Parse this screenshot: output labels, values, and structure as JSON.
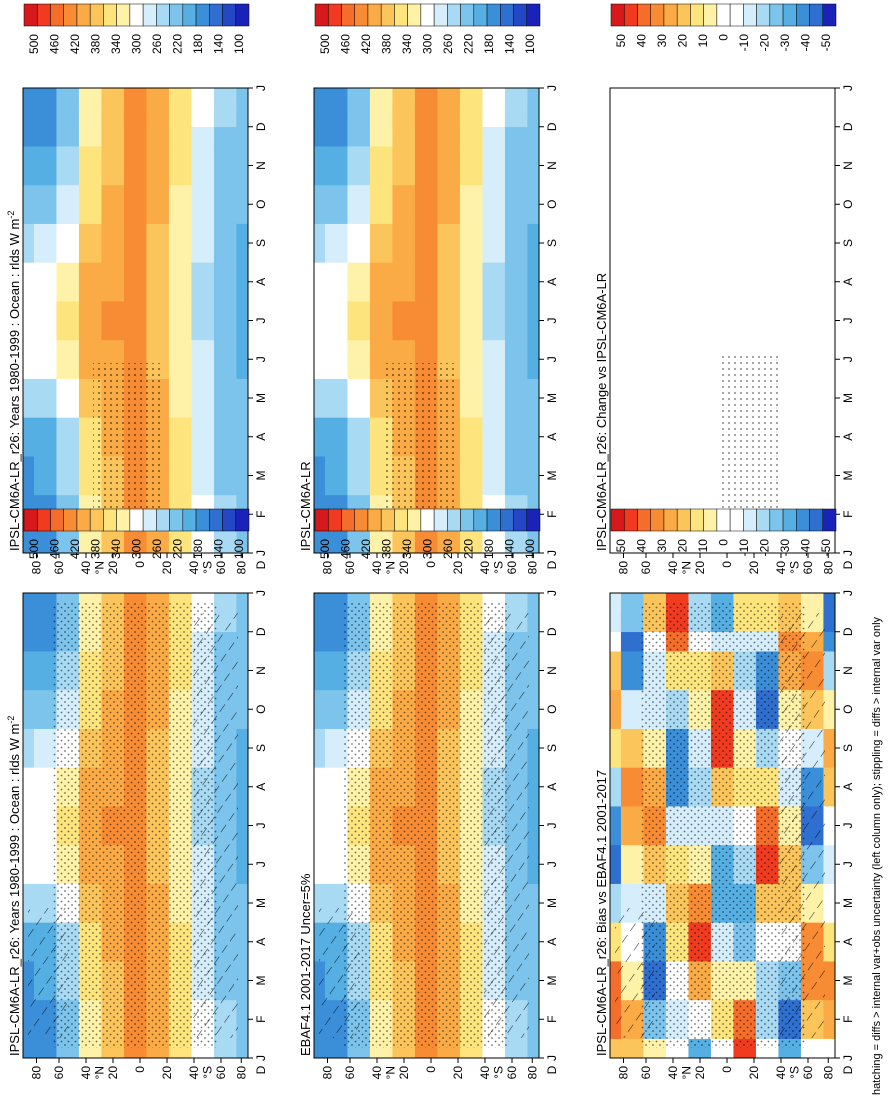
{
  "footnote": "hatching = diffs > internal var+obs uncertainty (left column only); stippling = diffs > internal var only",
  "month_ticks": [
    "J",
    "F",
    "M",
    "A",
    "M",
    "J",
    "J",
    "A",
    "S",
    "O",
    "N",
    "D",
    "J"
  ],
  "lat_ticks": [
    "80",
    "60",
    "40",
    "20",
    "0",
    "20",
    "40",
    "60",
    "80"
  ],
  "lat_hemi_marks": [
    "N",
    "S"
  ],
  "lat_left_end_label": "D",
  "abs_colorbar": {
    "labels": [
      "500",
      "460",
      "420",
      "380",
      "340",
      "300",
      "260",
      "220",
      "180",
      "140",
      "100"
    ],
    "colors": [
      "#d7191c",
      "#f03b20",
      "#f46d2a",
      "#f88c35",
      "#fbab45",
      "#fcc55c",
      "#fde47d",
      "#fef1a8",
      "#ffffff",
      "#d6eefb",
      "#a9daf4",
      "#7cc4ec",
      "#55afe3",
      "#3b8fd9",
      "#2f6fd0",
      "#2447c6",
      "#1a22b8"
    ]
  },
  "diff_colorbar": {
    "labels": [
      "50",
      "40",
      "30",
      "20",
      "10",
      "0",
      "-10",
      "-20",
      "-30",
      "-40",
      "-50"
    ],
    "colors": [
      "#d7191c",
      "#f03b20",
      "#f46d2a",
      "#f88c35",
      "#fbab45",
      "#fcc55c",
      "#fde47d",
      "#fef1a8",
      "#ffffff",
      "#ffffff",
      "#d6eefb",
      "#a9daf4",
      "#7cc4ec",
      "#55afe3",
      "#3b8fd9",
      "#2f6fd0",
      "#1a22b8"
    ]
  },
  "panels": [
    {
      "id": "model-left",
      "title": "IPSL-CM6A-LR_r26: Years 1980-1999 : Ocean : rlds W m",
      "title_sup": "-2",
      "kind": "abs",
      "stipple": "dense",
      "hatch": true
    },
    {
      "id": "model-right",
      "title": "IPSL-CM6A-LR_r26: Years 1980-1999 : Ocean : rlds W m",
      "title_sup": "-2",
      "kind": "abs",
      "stipple": "sparse",
      "hatch": false
    },
    {
      "id": "obs-left",
      "title": "EBAF4.1 2001-2017 Uncer=5%",
      "title_sup": "",
      "kind": "abs",
      "stipple": "dense",
      "hatch": true
    },
    {
      "id": "ref-right",
      "title": "IPSL-CM6A-LR",
      "title_sup": "",
      "kind": "abs",
      "stipple": "sparse",
      "hatch": false
    },
    {
      "id": "bias-left",
      "title": "IPSL-CM6A-LR_r26: Bias vs EBAF4.1 2001-2017",
      "title_sup": "",
      "kind": "diff",
      "stipple": "dense",
      "hatch": true
    },
    {
      "id": "change-right",
      "title": "IPSL-CM6A-LR_r26: Change vs IPSL-CM6A-LR",
      "title_sup": "",
      "kind": "diffblank",
      "stipple": "sparse",
      "hatch": false
    }
  ],
  "chart_data": {
    "type": "heatmap",
    "description_axes": {
      "x": "month (Jan–Jan)",
      "y": "latitude (90S–90N)"
    },
    "months": [
      "J",
      "F",
      "M",
      "A",
      "M",
      "J",
      "J",
      "A",
      "S",
      "O",
      "N",
      "D",
      "J"
    ],
    "latitudes": [
      90,
      80,
      60,
      40,
      20,
      0,
      -20,
      -40,
      -60,
      -80,
      -90
    ],
    "rlds_climatology": [
      [
        170,
        170,
        180,
        200,
        240,
        290,
        300,
        300,
        260,
        220,
        190,
        175,
        170
      ],
      [
        180,
        180,
        190,
        210,
        250,
        300,
        310,
        305,
        270,
        230,
        200,
        185,
        180
      ],
      [
        230,
        230,
        240,
        260,
        300,
        330,
        340,
        335,
        310,
        280,
        250,
        235,
        230
      ],
      [
        330,
        330,
        340,
        350,
        370,
        390,
        395,
        390,
        375,
        355,
        340,
        335,
        330
      ],
      [
        380,
        380,
        385,
        395,
        405,
        410,
        415,
        410,
        405,
        395,
        385,
        380,
        380
      ],
      [
        420,
        425,
        430,
        430,
        425,
        420,
        415,
        415,
        420,
        425,
        425,
        420,
        420
      ],
      [
        400,
        405,
        405,
        400,
        395,
        385,
        380,
        380,
        385,
        390,
        395,
        400,
        400
      ],
      [
        350,
        355,
        350,
        340,
        330,
        320,
        315,
        315,
        320,
        330,
        340,
        345,
        350
      ],
      [
        290,
        290,
        285,
        280,
        270,
        265,
        260,
        260,
        265,
        270,
        280,
        285,
        290
      ],
      [
        240,
        240,
        235,
        230,
        225,
        220,
        215,
        215,
        220,
        225,
        230,
        235,
        240
      ],
      [
        230,
        230,
        225,
        220,
        215,
        210,
        205,
        205,
        210,
        215,
        220,
        225,
        230
      ]
    ],
    "colorbar_abs": {
      "ticks": [
        500,
        460,
        420,
        380,
        340,
        300,
        260,
        220,
        180,
        140,
        100
      ],
      "units": "W m-2"
    },
    "colorbar_diff": {
      "ticks": [
        50,
        40,
        30,
        20,
        10,
        0,
        -10,
        -20,
        -30,
        -40,
        -50
      ],
      "units": "W m-2"
    }
  }
}
